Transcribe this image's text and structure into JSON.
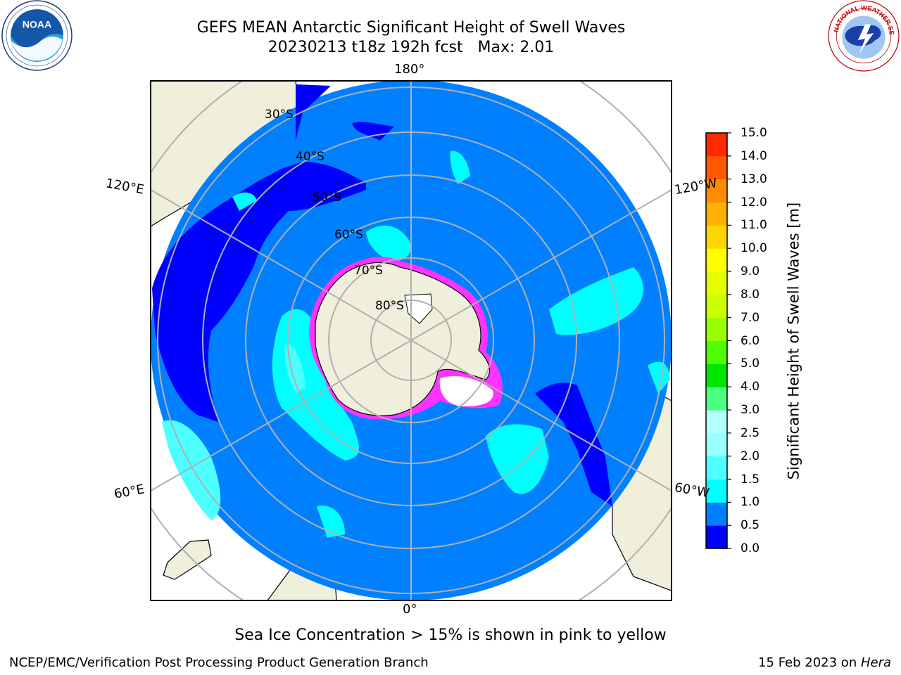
{
  "title": {
    "line1": "GEFS MEAN Antarctic Significant Height of Swell Waves",
    "line2": "20230213 t18z 192h fcst   Max: 2.01"
  },
  "logos": {
    "noaa_text": "NOAA",
    "noaa_ring_text": "NATIONAL OCEANIC AND ATMOSPHERIC ADMINISTRATION • U.S. DEPARTMENT OF COMMERCE",
    "nws_ring_text": "NATIONAL WEATHER SERVICE"
  },
  "map": {
    "projection": "south-polar-stereographic",
    "longitude_labels": {
      "top": "180°",
      "bottom": "0°",
      "upper_left": "120°E",
      "upper_right": "120°W",
      "lower_left": "60°E",
      "lower_right": "60°W"
    },
    "latitude_labels": [
      "30°S",
      "40°S",
      "50°S",
      "60°S",
      "70°S",
      "80°S"
    ],
    "colors": {
      "ocean_default": "#0080ff",
      "land": "#efefdc",
      "ice_edge": "#ff33ff",
      "ice_core": "#ffffff",
      "grid": "#b0b0b0"
    }
  },
  "colorbar": {
    "label": "Significant Height of Swell Waves [m]",
    "ticks": [
      "0.0",
      "0.5",
      "1.0",
      "1.5",
      "2.0",
      "2.5",
      "3.0",
      "4.0",
      "5.0",
      "6.0",
      "7.0",
      "8.0",
      "9.0",
      "10.0",
      "11.0",
      "12.0",
      "13.0",
      "14.0",
      "15.0"
    ],
    "colors": [
      "#0000ff",
      "#0080ff",
      "#00ffff",
      "#4dffff",
      "#99ffff",
      "#b3ffff",
      "#4dff80",
      "#00e600",
      "#4dff00",
      "#99ff00",
      "#ccff00",
      "#e6ff00",
      "#ffff00",
      "#ffd700",
      "#ffb000",
      "#ff8c00",
      "#ff5a00",
      "#ff2a00",
      "#ff0000"
    ]
  },
  "caption": "Sea Ice Concentration > 15% is shown in pink to yellow",
  "footer": {
    "left": "NCEP/EMC/Verification Post Processing Product Generation Branch",
    "right_prefix": "15 Feb 2023 on ",
    "right_italic": "Hera"
  }
}
